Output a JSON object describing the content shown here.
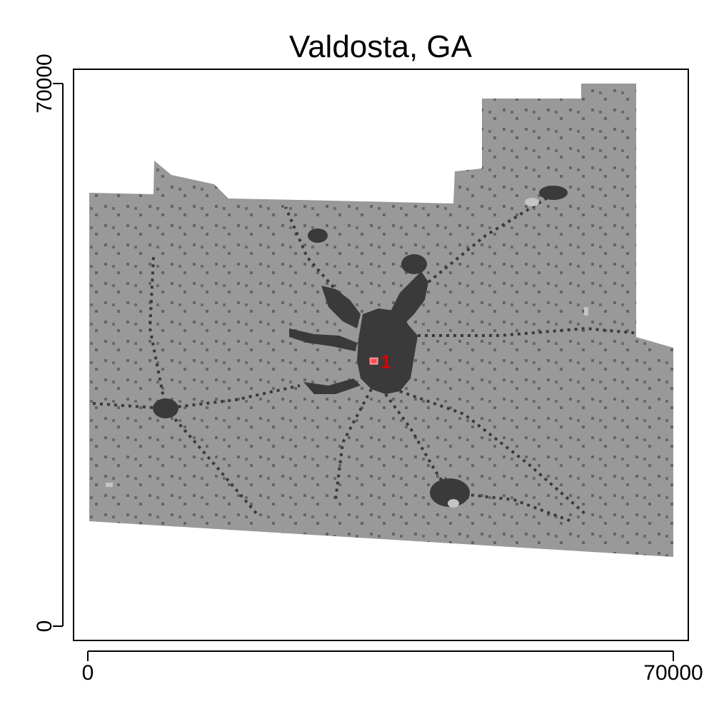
{
  "title": "Valdosta, GA",
  "x_axis": {
    "min": 0,
    "max": 70000,
    "ticks": [
      "0",
      "70000"
    ]
  },
  "y_axis": {
    "min": 0,
    "max": 70000,
    "ticks": [
      "0",
      "70000"
    ]
  },
  "colors": {
    "background": "#ffffff",
    "county_fill": "#999999",
    "developed": "#3a3a3a",
    "light_patches": "#c4c4c4",
    "marker": "#ff4d4d",
    "marker_label": "#e00000"
  },
  "marker": {
    "label": "1",
    "x": 34200,
    "y": 34200
  }
}
